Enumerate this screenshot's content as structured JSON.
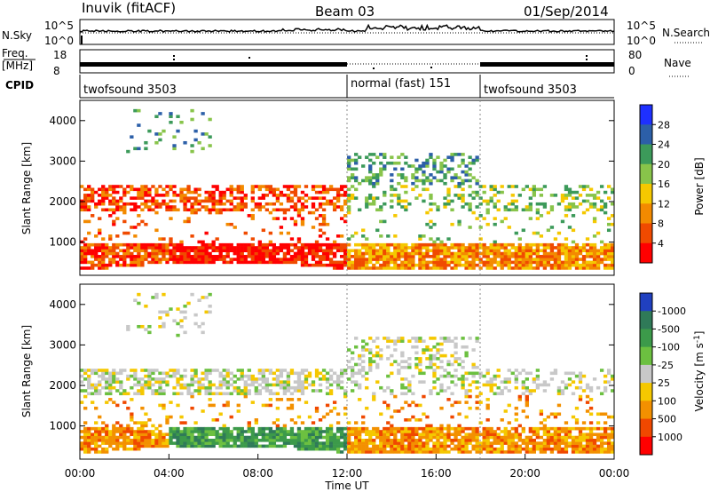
{
  "header": {
    "station": "Inuvik (fitACF)",
    "beam": "Beam 03",
    "date": "01/Sep/2014"
  },
  "summary": {
    "nsky_label": "N.Sky",
    "nsky_ticks": [
      "10^5",
      "10^0"
    ],
    "nsearch_label": "N.Search",
    "nsearch_ticks": [
      "10^5",
      "10^0"
    ],
    "freq_label_line1": "Freq.",
    "freq_label_line2": "[MHz]",
    "freq_ticks": [
      "18",
      "8"
    ],
    "nave_label": "Nave",
    "nave_ticks": [
      "80",
      "0"
    ],
    "cpid_label": "CPID",
    "cpid_segments": [
      {
        "label": "twofsound 3503",
        "start_h": 0,
        "end_h": 12
      },
      {
        "label": "normal (fast) 151",
        "start_h": 12,
        "end_h": 18
      },
      {
        "label": "twofsound 3503",
        "start_h": 18,
        "end_h": 24
      }
    ]
  },
  "chart_data": [
    {
      "type": "heatmap",
      "title": "",
      "xlabel": "",
      "ylabel": "Slant Range [km]",
      "xlim": [
        0,
        24
      ],
      "ylim": [
        180,
        4500
      ],
      "y_ticks": [
        "1000",
        "2000",
        "3000",
        "4000"
      ],
      "colorbar": {
        "label": "Power [dB]",
        "tick_labels": [
          "4",
          "8",
          "12",
          "16",
          "20",
          "24",
          "28"
        ],
        "colors": [
          "#1e30ff",
          "#2c5fa8",
          "#3c9a5a",
          "#88c44a",
          "#f5c800",
          "#f38a00",
          "#f04a00",
          "#ff0000"
        ]
      }
    },
    {
      "type": "heatmap",
      "title": "",
      "xlabel": "Time UT",
      "ylabel": "Slant Range [km]",
      "xlim": [
        0,
        24
      ],
      "ylim": [
        180,
        4500
      ],
      "x_ticks": [
        "00:00",
        "04:00",
        "08:00",
        "12:00",
        "16:00",
        "20:00",
        "00:00"
      ],
      "y_ticks": [
        "1000",
        "2000",
        "3000",
        "4000"
      ],
      "colorbar": {
        "label": "Velocity [m s",
        "label_sup": "-1",
        "label_end": "]",
        "tick_labels": [
          "1000",
          "500",
          "100",
          "25",
          "-25",
          "-100",
          "-500",
          "-1000"
        ],
        "colors": [
          "#2040c0",
          "#2f7a58",
          "#3c9a4a",
          "#6cc040",
          "#c8c8c8",
          "#f5c800",
          "#f39000",
          "#f04800",
          "#ff0000"
        ]
      }
    }
  ]
}
